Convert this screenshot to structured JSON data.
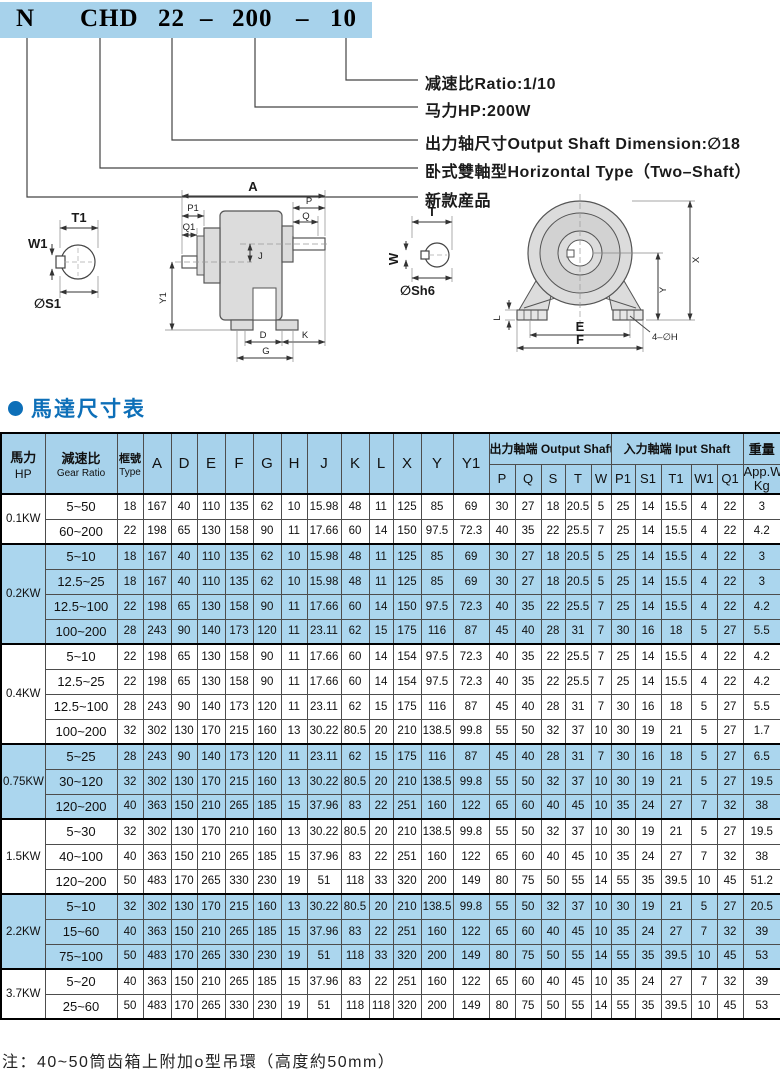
{
  "model_code": {
    "segments": [
      "N",
      "CHD",
      "22",
      "–",
      "200",
      "–",
      "10"
    ],
    "callouts": [
      {
        "label": "减速比Ratio:1/10"
      },
      {
        "label": "马力HP:200W"
      },
      {
        "label": "出力轴尺寸Output Shaft Dimension:∅18"
      },
      {
        "label": "卧式雙軸型Horizontal Type（Two–Shaft）"
      },
      {
        "label": "新款産品"
      }
    ]
  },
  "diagrams": {
    "input_shaft_detail": {
      "t1": "T1",
      "w1": "W1",
      "s1": "∅S1"
    },
    "side_view": {
      "a": "A",
      "p1": "P1",
      "q1": "Q1",
      "p": "P",
      "q": "Q",
      "j": "J",
      "y1": "Y1",
      "d": "D",
      "k": "K",
      "g": "G"
    },
    "output_shaft_detail": {
      "t": "T",
      "w": "W",
      "sh6": "∅Sh6"
    },
    "front_view": {
      "x": "X",
      "y": "Y",
      "l": "L",
      "e": "E",
      "f": "F",
      "holes": "4–∅H"
    }
  },
  "section_title": "馬達尺寸表",
  "table": {
    "hp_zh": "馬力",
    "hp_en": "HP",
    "ratio_zh": "減速比",
    "ratio_en": "Gear Ratio",
    "type_zh": "框號",
    "type_en": "Type",
    "dims": [
      "A",
      "D",
      "E",
      "F",
      "G",
      "H",
      "J",
      "K",
      "L",
      "X",
      "Y",
      "Y1"
    ],
    "output_group": "出力軸端 Output Shaft",
    "input_group": "入力軸端 Iput Shaft",
    "output_cols": [
      "P",
      "Q",
      "S",
      "T",
      "W"
    ],
    "input_cols": [
      "P1",
      "S1",
      "T1",
      "W1",
      "Q1"
    ],
    "weight_zh": "重量",
    "weight_en": "App.Wt. Kg",
    "groups": [
      {
        "hp": "0.1KW",
        "shaded": false,
        "rows": [
          {
            "ratio": "5~50",
            "v": [
              "18",
              "167",
              "40",
              "110",
              "135",
              "62",
              "10",
              "15.98",
              "48",
              "11",
              "125",
              "85",
              "69",
              "30",
              "27",
              "18",
              "20.5",
              "5",
              "25",
              "14",
              "15.5",
              "4",
              "22",
              "3"
            ]
          },
          {
            "ratio": "60~200",
            "v": [
              "22",
              "198",
              "65",
              "130",
              "158",
              "90",
              "11",
              "17.66",
              "60",
              "14",
              "150",
              "97.5",
              "72.3",
              "40",
              "35",
              "22",
              "25.5",
              "7",
              "25",
              "14",
              "15.5",
              "4",
              "22",
              "4.2"
            ]
          }
        ]
      },
      {
        "hp": "0.2KW",
        "shaded": true,
        "rows": [
          {
            "ratio": "5~10",
            "v": [
              "18",
              "167",
              "40",
              "110",
              "135",
              "62",
              "10",
              "15.98",
              "48",
              "11",
              "125",
              "85",
              "69",
              "30",
              "27",
              "18",
              "20.5",
              "5",
              "25",
              "14",
              "15.5",
              "4",
              "22",
              "3"
            ]
          },
          {
            "ratio": "12.5~25",
            "v": [
              "18",
              "167",
              "40",
              "110",
              "135",
              "62",
              "10",
              "15.98",
              "48",
              "11",
              "125",
              "85",
              "69",
              "30",
              "27",
              "18",
              "20.5",
              "5",
              "25",
              "14",
              "15.5",
              "4",
              "22",
              "3"
            ]
          },
          {
            "ratio": "12.5~100",
            "v": [
              "22",
              "198",
              "65",
              "130",
              "158",
              "90",
              "11",
              "17.66",
              "60",
              "14",
              "150",
              "97.5",
              "72.3",
              "40",
              "35",
              "22",
              "25.5",
              "7",
              "25",
              "14",
              "15.5",
              "4",
              "22",
              "4.2"
            ]
          },
          {
            "ratio": "100~200",
            "v": [
              "28",
              "243",
              "90",
              "140",
              "173",
              "120",
              "11",
              "23.11",
              "62",
              "15",
              "175",
              "116",
              "87",
              "45",
              "40",
              "28",
              "31",
              "7",
              "30",
              "16",
              "18",
              "5",
              "27",
              "5.5"
            ]
          }
        ]
      },
      {
        "hp": "0.4KW",
        "shaded": false,
        "rows": [
          {
            "ratio": "5~10",
            "v": [
              "22",
              "198",
              "65",
              "130",
              "158",
              "90",
              "11",
              "17.66",
              "60",
              "14",
              "154",
              "97.5",
              "72.3",
              "40",
              "35",
              "22",
              "25.5",
              "7",
              "25",
              "14",
              "15.5",
              "4",
              "22",
              "4.2"
            ]
          },
          {
            "ratio": "12.5~25",
            "v": [
              "22",
              "198",
              "65",
              "130",
              "158",
              "90",
              "11",
              "17.66",
              "60",
              "14",
              "154",
              "97.5",
              "72.3",
              "40",
              "35",
              "22",
              "25.5",
              "7",
              "25",
              "14",
              "15.5",
              "4",
              "22",
              "4.2"
            ]
          },
          {
            "ratio": "12.5~100",
            "v": [
              "28",
              "243",
              "90",
              "140",
              "173",
              "120",
              "11",
              "23.11",
              "62",
              "15",
              "175",
              "116",
              "87",
              "45",
              "40",
              "28",
              "31",
              "7",
              "30",
              "16",
              "18",
              "5",
              "27",
              "5.5"
            ]
          },
          {
            "ratio": "100~200",
            "v": [
              "32",
              "302",
              "130",
              "170",
              "215",
              "160",
              "13",
              "30.22",
              "80.5",
              "20",
              "210",
              "138.5",
              "99.8",
              "55",
              "50",
              "32",
              "37",
              "10",
              "30",
              "19",
              "21",
              "5",
              "27",
              "1.7"
            ]
          }
        ]
      },
      {
        "hp": "0.75KW",
        "shaded": true,
        "rows": [
          {
            "ratio": "5~25",
            "v": [
              "28",
              "243",
              "90",
              "140",
              "173",
              "120",
              "11",
              "23.11",
              "62",
              "15",
              "175",
              "116",
              "87",
              "45",
              "40",
              "28",
              "31",
              "7",
              "30",
              "16",
              "18",
              "5",
              "27",
              "6.5"
            ]
          },
          {
            "ratio": "30~120",
            "v": [
              "32",
              "302",
              "130",
              "170",
              "215",
              "160",
              "13",
              "30.22",
              "80.5",
              "20",
              "210",
              "138.5",
              "99.8",
              "55",
              "50",
              "32",
              "37",
              "10",
              "30",
              "19",
              "21",
              "5",
              "27",
              "19.5"
            ]
          },
          {
            "ratio": "120~200",
            "v": [
              "40",
              "363",
              "150",
              "210",
              "265",
              "185",
              "15",
              "37.96",
              "83",
              "22",
              "251",
              "160",
              "122",
              "65",
              "60",
              "40",
              "45",
              "10",
              "35",
              "24",
              "27",
              "7",
              "32",
              "38"
            ]
          }
        ]
      },
      {
        "hp": "1.5KW",
        "shaded": false,
        "rows": [
          {
            "ratio": "5~30",
            "v": [
              "32",
              "302",
              "130",
              "170",
              "210",
              "160",
              "13",
              "30.22",
              "80.5",
              "20",
              "210",
              "138.5",
              "99.8",
              "55",
              "50",
              "32",
              "37",
              "10",
              "30",
              "19",
              "21",
              "5",
              "27",
              "19.5"
            ]
          },
          {
            "ratio": "40~100",
            "v": [
              "40",
              "363",
              "150",
              "210",
              "265",
              "185",
              "15",
              "37.96",
              "83",
              "22",
              "251",
              "160",
              "122",
              "65",
              "60",
              "40",
              "45",
              "10",
              "35",
              "24",
              "27",
              "7",
              "32",
              "38"
            ]
          },
          {
            "ratio": "120~200",
            "v": [
              "50",
              "483",
              "170",
              "265",
              "330",
              "230",
              "19",
              "51",
              "118",
              "33",
              "320",
              "200",
              "149",
              "80",
              "75",
              "50",
              "55",
              "14",
              "55",
              "35",
              "39.5",
              "10",
              "45",
              "51.2"
            ]
          }
        ]
      },
      {
        "hp": "2.2KW",
        "shaded": true,
        "rows": [
          {
            "ratio": "5~10",
            "v": [
              "32",
              "302",
              "130",
              "170",
              "215",
              "160",
              "13",
              "30.22",
              "80.5",
              "20",
              "210",
              "138.5",
              "99.8",
              "55",
              "50",
              "32",
              "37",
              "10",
              "30",
              "19",
              "21",
              "5",
              "27",
              "20.5"
            ]
          },
          {
            "ratio": "15~60",
            "v": [
              "40",
              "363",
              "150",
              "210",
              "265",
              "185",
              "15",
              "37.96",
              "83",
              "22",
              "251",
              "160",
              "122",
              "65",
              "60",
              "40",
              "45",
              "10",
              "35",
              "24",
              "27",
              "7",
              "32",
              "39"
            ]
          },
          {
            "ratio": "75~100",
            "v": [
              "50",
              "483",
              "170",
              "265",
              "330",
              "230",
              "19",
              "51",
              "118",
              "33",
              "320",
              "200",
              "149",
              "80",
              "75",
              "50",
              "55",
              "14",
              "55",
              "35",
              "39.5",
              "10",
              "45",
              "53"
            ]
          }
        ]
      },
      {
        "hp": "3.7KW",
        "shaded": false,
        "rows": [
          {
            "ratio": "5~20",
            "v": [
              "40",
              "363",
              "150",
              "210",
              "265",
              "185",
              "15",
              "37.96",
              "83",
              "22",
              "251",
              "160",
              "122",
              "65",
              "60",
              "40",
              "45",
              "10",
              "35",
              "24",
              "27",
              "7",
              "32",
              "39"
            ]
          },
          {
            "ratio": "25~60",
            "v": [
              "50",
              "483",
              "170",
              "265",
              "330",
              "230",
              "19",
              "51",
              "118",
              "118",
              "320",
              "200",
              "149",
              "80",
              "75",
              "50",
              "55",
              "14",
              "55",
              "35",
              "39.5",
              "10",
              "45",
              "53"
            ]
          }
        ]
      }
    ]
  },
  "note": "注：40~50筒齿箱上附加o型吊環（高度約50mm）",
  "colors": {
    "accent_blue": "#0d6fb8",
    "band_blue": "#a7d2eb",
    "row_blue": "#abd6ee"
  }
}
